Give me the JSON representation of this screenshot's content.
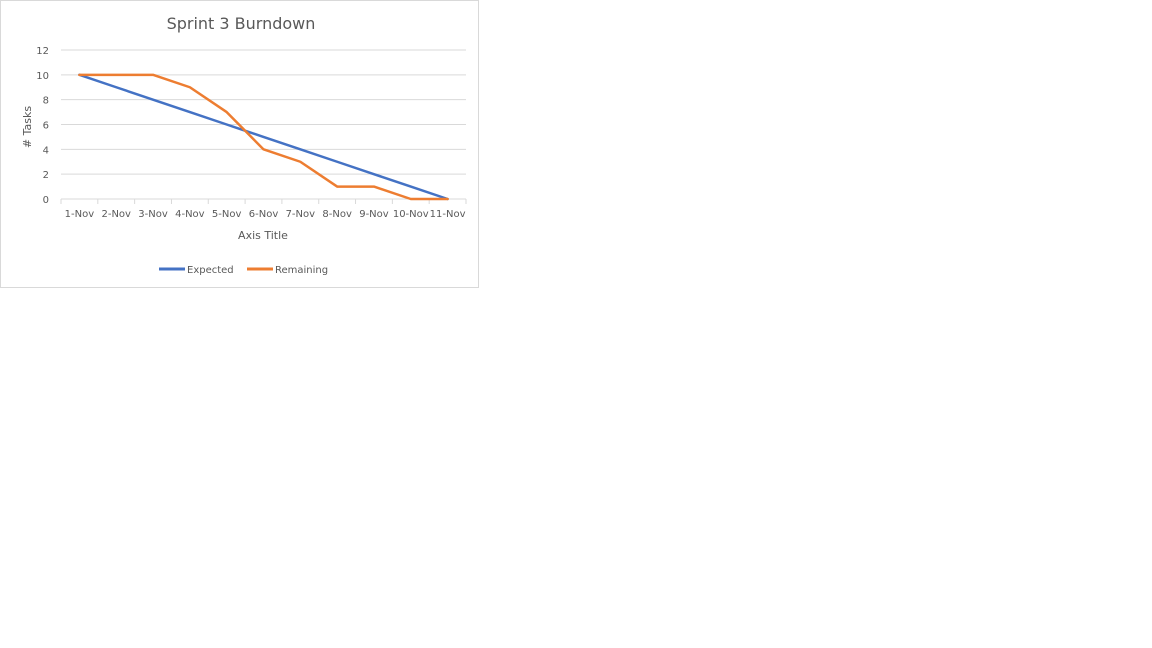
{
  "chart_data": {
    "type": "line",
    "title": "Sprint 3 Burndown",
    "xlabel": "Axis Title",
    "ylabel": "# Tasks",
    "categories": [
      "1-Nov",
      "2-Nov",
      "3-Nov",
      "4-Nov",
      "5-Nov",
      "6-Nov",
      "7-Nov",
      "8-Nov",
      "9-Nov",
      "10-Nov",
      "11-Nov"
    ],
    "ylim": [
      0,
      12
    ],
    "yticks": [
      "0",
      "2",
      "4",
      "6",
      "8",
      "10",
      "12"
    ],
    "grid": true,
    "legend_position": "bottom",
    "series": [
      {
        "name": "Expected",
        "color": "#4472C4",
        "values": [
          10,
          9,
          8,
          7,
          6,
          5,
          4,
          3,
          2,
          1,
          0
        ]
      },
      {
        "name": "Remaining",
        "color": "#ED7D31",
        "values": [
          10,
          10,
          10,
          9,
          7,
          4,
          3,
          1,
          1,
          0,
          0
        ]
      }
    ]
  }
}
